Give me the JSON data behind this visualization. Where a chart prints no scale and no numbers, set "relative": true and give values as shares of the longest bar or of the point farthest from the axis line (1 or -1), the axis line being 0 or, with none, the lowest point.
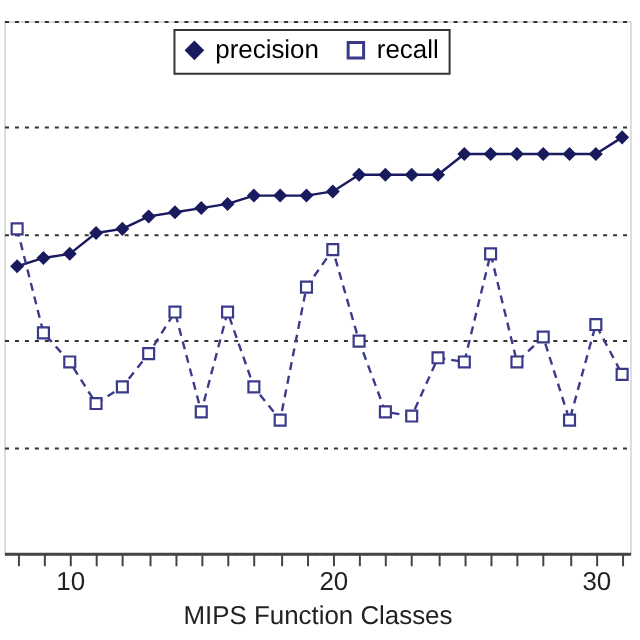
{
  "chart_data": {
    "type": "line",
    "relative": true,
    "xlabel": "MIPS Function Classes",
    "x": [
      8,
      9,
      10,
      11,
      12,
      13,
      14,
      15,
      16,
      17,
      18,
      19,
      20,
      21,
      22,
      23,
      24,
      25,
      26,
      27,
      28,
      29,
      30,
      31
    ],
    "xlim": [
      7.5,
      31.3
    ],
    "xticks": [
      {
        "value": 8,
        "label": null
      },
      {
        "value": 9,
        "label": null
      },
      10,
      {
        "value": 11,
        "label": null
      },
      {
        "value": 12,
        "label": null
      },
      {
        "value": 13,
        "label": null
      },
      {
        "value": 14,
        "label": null
      },
      {
        "value": 15,
        "label": null
      },
      {
        "value": 16,
        "label": null
      },
      {
        "value": 17,
        "label": null
      },
      {
        "value": 18,
        "label": null
      },
      {
        "value": 19,
        "label": null
      },
      20,
      {
        "value": 21,
        "label": null
      },
      {
        "value": 22,
        "label": null
      },
      {
        "value": 23,
        "label": null
      },
      {
        "value": 24,
        "label": null
      },
      {
        "value": 25,
        "label": null
      },
      {
        "value": 26,
        "label": null
      },
      {
        "value": 27,
        "label": null
      },
      {
        "value": 28,
        "label": null
      },
      {
        "value": 29,
        "label": null
      },
      30,
      {
        "value": 31,
        "label": null
      }
    ],
    "series": [
      {
        "name": "precision",
        "color": "#1a1a5e",
        "marker": "diamond",
        "line_style": "solid",
        "values": [
          0.69,
          0.71,
          0.72,
          0.77,
          0.78,
          0.81,
          0.82,
          0.83,
          0.84,
          0.86,
          0.86,
          0.86,
          0.87,
          0.91,
          0.91,
          0.91,
          0.91,
          0.96,
          0.96,
          0.96,
          0.96,
          0.96,
          0.96,
          1.0
        ]
      },
      {
        "name": "recall",
        "color": "#3a3a8a",
        "marker": "square",
        "line_style": "dashed",
        "values": [
          0.78,
          0.53,
          0.46,
          0.36,
          0.4,
          0.48,
          0.58,
          0.34,
          0.58,
          0.4,
          0.32,
          0.64,
          0.73,
          0.51,
          0.34,
          0.33,
          0.47,
          0.46,
          0.72,
          0.46,
          0.52,
          0.32,
          0.55,
          0.43
        ]
      }
    ],
    "grid": "y",
    "legend": "top"
  }
}
